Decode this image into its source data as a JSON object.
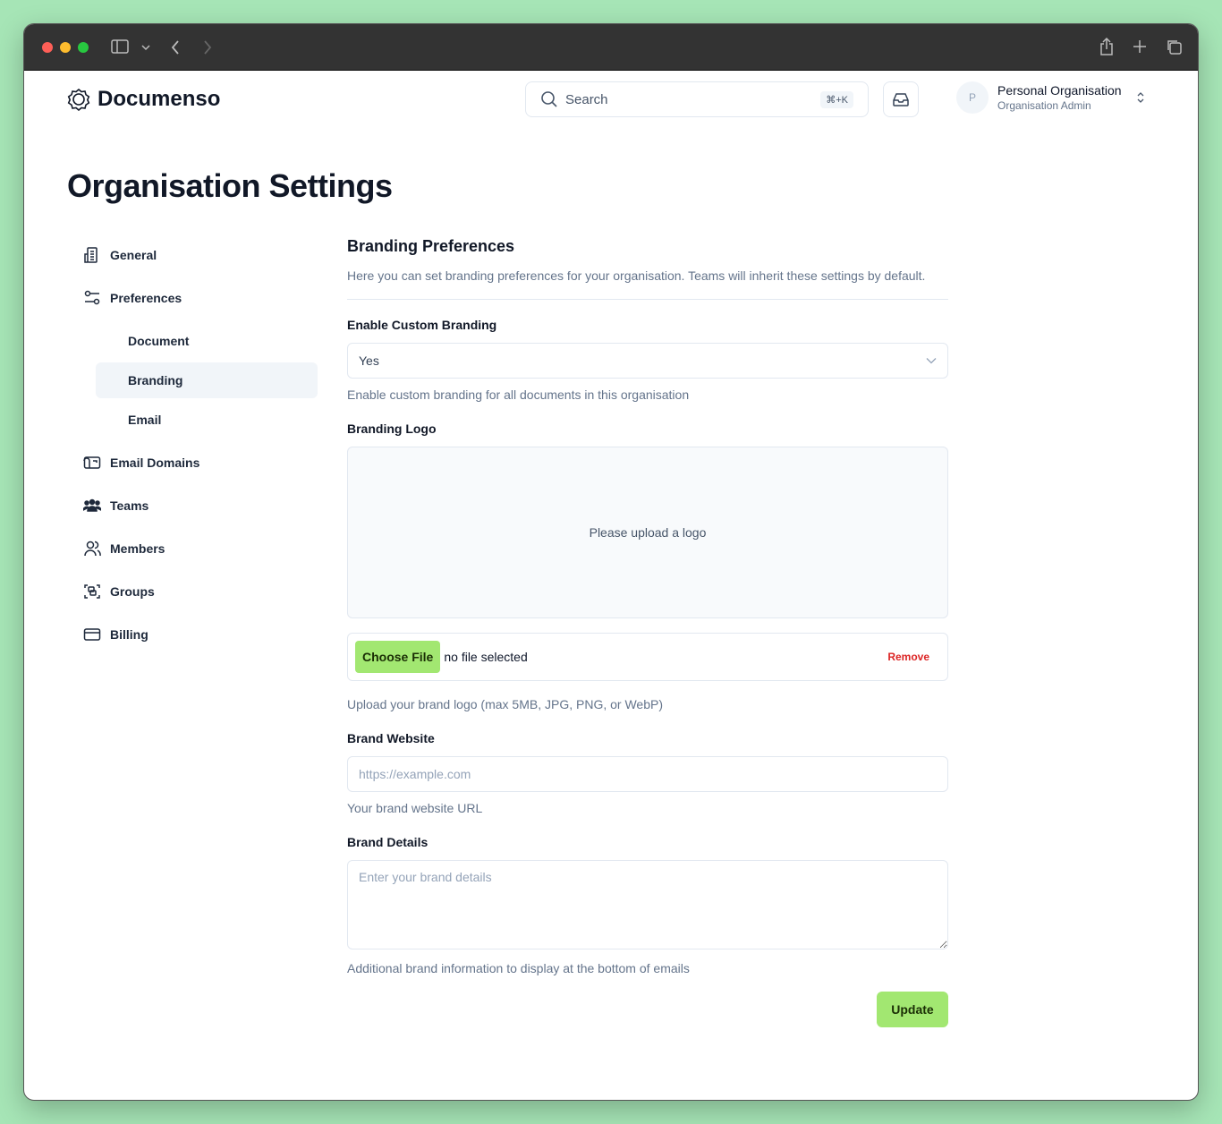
{
  "browser": {
    "icons": [
      "sidebar-icon",
      "chevron-down-icon",
      "back-icon",
      "forward-icon",
      "share-icon",
      "new-tab-icon",
      "tabs-icon"
    ]
  },
  "header": {
    "brand": "Documenso",
    "search_label": "Search",
    "search_shortcut": "⌘+K",
    "org_initial": "P",
    "org_name": "Personal Organisation",
    "org_role": "Organisation Admin"
  },
  "page": {
    "title": "Organisation Settings"
  },
  "sidebar": {
    "items": [
      {
        "label": "General",
        "icon": "building-icon"
      },
      {
        "label": "Preferences",
        "icon": "sliders-icon"
      },
      {
        "label": "Document",
        "sub": true
      },
      {
        "label": "Branding",
        "sub": true,
        "active": true
      },
      {
        "label": "Email",
        "sub": true
      },
      {
        "label": "Email Domains",
        "icon": "mailbox-icon"
      },
      {
        "label": "Teams",
        "icon": "users-solid-icon"
      },
      {
        "label": "Members",
        "icon": "users-icon"
      },
      {
        "label": "Groups",
        "icon": "group-icon"
      },
      {
        "label": "Billing",
        "icon": "credit-card-icon"
      }
    ]
  },
  "main": {
    "title": "Branding Preferences",
    "description": "Here you can set branding preferences for your organisation. Teams will inherit these settings by default.",
    "enable": {
      "label": "Enable Custom Branding",
      "value": "Yes",
      "help": "Enable custom branding for all documents in this organisation"
    },
    "logo": {
      "label": "Branding Logo",
      "placeholder": "Please upload a logo",
      "choose": "Choose File",
      "no_file": "no file selected",
      "remove": "Remove",
      "help": "Upload your brand logo (max 5MB, JPG, PNG, or WebP)"
    },
    "website": {
      "label": "Brand Website",
      "placeholder": "https://example.com",
      "help": "Your brand website URL"
    },
    "details": {
      "label": "Brand Details",
      "placeholder": "Enter your brand details",
      "help": "Additional brand information to display at the bottom of emails"
    },
    "update": "Update"
  },
  "colors": {
    "accent": "#a2e771",
    "danger": "#dc2626"
  }
}
